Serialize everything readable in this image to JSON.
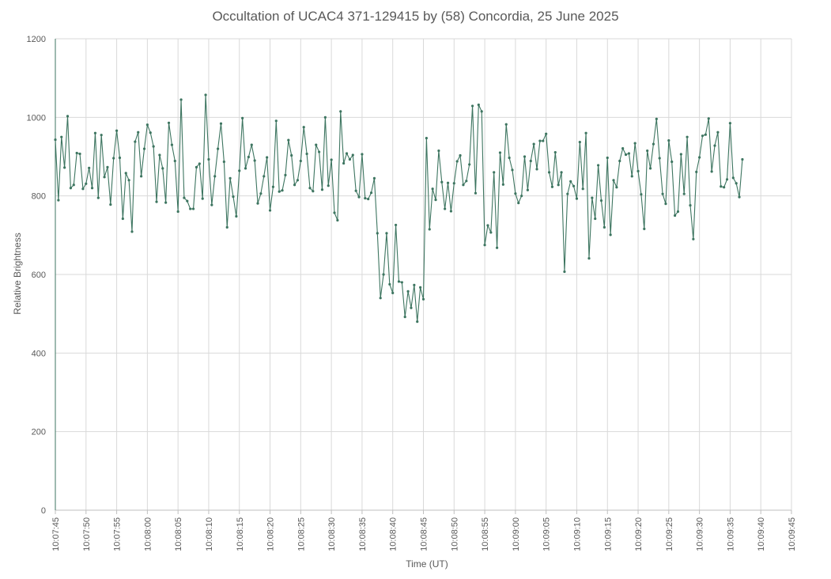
{
  "chart_data": {
    "type": "line",
    "title": "Occultation of UCAC4 371-129415 by (58) Concordia, 25 June 2025",
    "xlabel": "Time (UT)",
    "ylabel": "Relative Brightness",
    "ylim": [
      0,
      1200
    ],
    "yticks": [
      0,
      200,
      400,
      600,
      800,
      1000,
      1200
    ],
    "xlim": [
      "10:07:45",
      "10:09:45"
    ],
    "xticks": [
      "10:07:45",
      "10:07:50",
      "10:07:55",
      "10:08:00",
      "10:08:05",
      "10:08:10",
      "10:08:15",
      "10:08:20",
      "10:08:25",
      "10:08:30",
      "10:08:35",
      "10:08:40",
      "10:08:45",
      "10:08:50",
      "10:08:55",
      "10:09:00",
      "10:09:05",
      "10:09:10",
      "10:09:15",
      "10:09:20",
      "10:09:25",
      "10:09:30",
      "10:09:35",
      "10:09:40",
      "10:09:45"
    ],
    "grid": true,
    "line_color": "#3d7560",
    "series": [
      {
        "sample_interval_s": 0.5,
        "start": "10:07:45",
        "values": [
          943,
          789,
          950,
          872,
          1003,
          820,
          828,
          909,
          907,
          818,
          831,
          871,
          820,
          960,
          795,
          955,
          848,
          873,
          778,
          896,
          966,
          897,
          742,
          858,
          840,
          709,
          938,
          962,
          850,
          920,
          981,
          961,
          926,
          785,
          904,
          870,
          783,
          986,
          930,
          889,
          760,
          1045,
          795,
          787,
          767,
          767,
          873,
          882,
          793,
          1057,
          893,
          777,
          850,
          920,
          984,
          887,
          720,
          845,
          798,
          748,
          864,
          998,
          870,
          899,
          930,
          890,
          781,
          806,
          850,
          898,
          763,
          823,
          991,
          811,
          814,
          853,
          942,
          903,
          828,
          840,
          889,
          975,
          907,
          820,
          812,
          930,
          912,
          816,
          1000,
          826,
          892,
          757,
          738,
          1015,
          883,
          908,
          893,
          904,
          813,
          797,
          906,
          794,
          792,
          808,
          845,
          705,
          540,
          600,
          705,
          575,
          553,
          726,
          582,
          580,
          492,
          557,
          515,
          573,
          480,
          567,
          537,
          947,
          715,
          818,
          790,
          915,
          835,
          767,
          833,
          761,
          832,
          888,
          903,
          828,
          838,
          880,
          1029,
          807,
          1032,
          1015,
          675,
          725,
          707,
          860,
          668,
          910,
          829,
          982,
          897,
          866,
          806,
          782,
          800,
          900,
          815,
          889,
          932,
          868,
          940,
          940,
          958,
          860,
          823,
          911,
          828,
          860,
          607,
          805,
          837,
          825,
          793,
          937,
          818,
          960,
          641,
          795,
          742,
          878,
          788,
          720,
          897,
          701,
          840,
          822,
          889,
          921,
          905,
          908,
          850,
          934,
          863,
          804,
          716,
          915,
          870,
          932,
          996,
          896,
          805,
          780,
          941,
          887,
          750,
          760,
          906,
          805,
          950,
          776,
          690,
          861,
          898,
          953,
          956,
          997,
          862,
          928,
          962,
          824,
          822,
          842,
          985,
          846,
          832,
          797,
          893
        ]
      }
    ]
  }
}
